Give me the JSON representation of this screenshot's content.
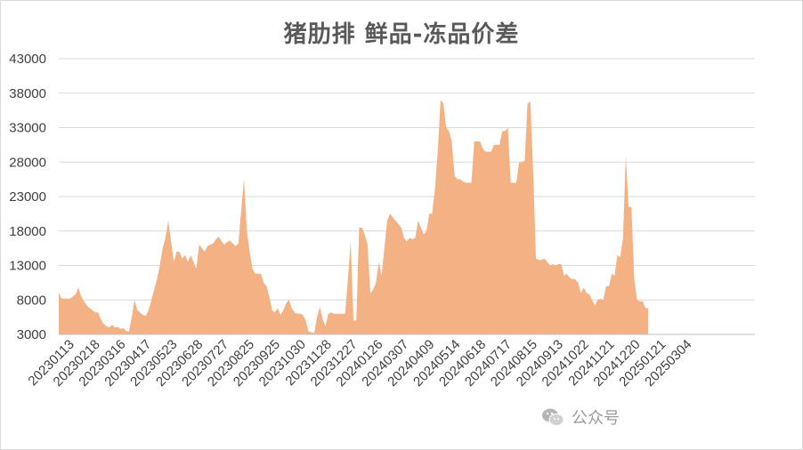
{
  "chart_data": {
    "type": "area",
    "title": "猪肋排  鲜品-冻品价差",
    "xlabel": "",
    "ylabel": "",
    "ylim": [
      3000,
      43000
    ],
    "yticks": [
      3000,
      8000,
      13000,
      18000,
      23000,
      28000,
      33000,
      38000,
      43000
    ],
    "xtick_labels": [
      "20230113",
      "20230218",
      "20230316",
      "20230417",
      "20230523",
      "20230628",
      "20230727",
      "20230825",
      "20230925",
      "20231030",
      "20231128",
      "20231227",
      "20240126",
      "20240307",
      "20240409",
      "20240514",
      "20240618",
      "20240717",
      "20240815",
      "20240913",
      "20241022",
      "20241121",
      "20241220",
      "20250121",
      "20250304"
    ],
    "grid": true,
    "legend": "none",
    "fill_color": "#f4b183",
    "n_points": 248,
    "points": [
      [
        0,
        9000
      ],
      [
        1,
        8200
      ],
      [
        4,
        8200
      ],
      [
        5,
        8500
      ],
      [
        6,
        8800
      ],
      [
        7,
        9800
      ],
      [
        8,
        8500
      ],
      [
        9,
        7800
      ],
      [
        10,
        7200
      ],
      [
        11,
        6800
      ],
      [
        12,
        6500
      ],
      [
        13,
        6200
      ],
      [
        14,
        6200
      ],
      [
        15,
        5200
      ],
      [
        16,
        4500
      ],
      [
        17,
        4200
      ],
      [
        18,
        4000
      ],
      [
        19,
        4400
      ],
      [
        20,
        4000
      ],
      [
        21,
        4100
      ],
      [
        22,
        3800
      ],
      [
        23,
        3900
      ],
      [
        24,
        3500
      ],
      [
        25,
        3400
      ],
      [
        26,
        5500
      ],
      [
        27,
        8000
      ],
      [
        28,
        6500
      ],
      [
        29,
        6200
      ],
      [
        30,
        5800
      ],
      [
        31,
        5700
      ],
      [
        32,
        6500
      ],
      [
        33,
        8000
      ],
      [
        34,
        9500
      ],
      [
        35,
        11000
      ],
      [
        36,
        13000
      ],
      [
        37,
        15500
      ],
      [
        38,
        17000
      ],
      [
        39,
        19500
      ],
      [
        40,
        16500
      ],
      [
        41,
        13500
      ],
      [
        42,
        15000
      ],
      [
        43,
        15000
      ],
      [
        44,
        14000
      ],
      [
        45,
        14500
      ],
      [
        46,
        13500
      ],
      [
        47,
        14500
      ],
      [
        48,
        13500
      ],
      [
        49,
        12500
      ],
      [
        50,
        16000
      ],
      [
        51,
        15500
      ],
      [
        52,
        15000
      ],
      [
        53,
        15800
      ],
      [
        54,
        16000
      ],
      [
        55,
        16200
      ],
      [
        56,
        16800
      ],
      [
        57,
        17200
      ],
      [
        58,
        16500
      ],
      [
        59,
        16000
      ],
      [
        60,
        16400
      ],
      [
        61,
        16600
      ],
      [
        62,
        16200
      ],
      [
        63,
        15800
      ],
      [
        64,
        16200
      ],
      [
        65,
        21000
      ],
      [
        66,
        25500
      ],
      [
        67,
        18000
      ],
      [
        68,
        15000
      ],
      [
        69,
        12500
      ],
      [
        70,
        11800
      ],
      [
        71,
        11800
      ],
      [
        72,
        11800
      ],
      [
        73,
        10500
      ],
      [
        74,
        10000
      ],
      [
        75,
        8500
      ],
      [
        76,
        6500
      ],
      [
        77,
        6200
      ],
      [
        78,
        6800
      ],
      [
        79,
        5800
      ],
      [
        80,
        6500
      ],
      [
        81,
        7500
      ],
      [
        82,
        8000
      ],
      [
        83,
        6800
      ],
      [
        84,
        6200
      ],
      [
        85,
        6000
      ],
      [
        86,
        6000
      ],
      [
        87,
        5800
      ],
      [
        88,
        5000
      ],
      [
        89,
        3400
      ],
      [
        90,
        3300
      ],
      [
        91,
        3200
      ],
      [
        92,
        5500
      ],
      [
        93,
        7000
      ],
      [
        94,
        5200
      ],
      [
        95,
        4200
      ],
      [
        96,
        6000
      ],
      [
        97,
        6200
      ],
      [
        98,
        6000
      ],
      [
        99,
        6000
      ],
      [
        100,
        6000
      ],
      [
        101,
        6000
      ],
      [
        102,
        6000
      ],
      [
        103,
        11000
      ],
      [
        104,
        16500
      ],
      [
        105,
        5000
      ],
      [
        106,
        5000
      ],
      [
        107,
        18500
      ],
      [
        108,
        18500
      ],
      [
        109,
        17500
      ],
      [
        110,
        16000
      ],
      [
        111,
        9000
      ],
      [
        112,
        9500
      ],
      [
        113,
        10500
      ],
      [
        114,
        13500
      ],
      [
        115,
        11500
      ],
      [
        116,
        15500
      ],
      [
        117,
        19500
      ],
      [
        118,
        20500
      ],
      [
        119,
        20000
      ],
      [
        120,
        19500
      ],
      [
        121,
        19000
      ],
      [
        122,
        18500
      ],
      [
        123,
        17000
      ],
      [
        124,
        16500
      ],
      [
        125,
        17000
      ],
      [
        126,
        16800
      ],
      [
        127,
        17000
      ],
      [
        128,
        19500
      ],
      [
        129,
        18500
      ],
      [
        130,
        17500
      ],
      [
        131,
        18000
      ],
      [
        132,
        20500
      ],
      [
        133,
        20500
      ],
      [
        134,
        24000
      ],
      [
        135,
        29500
      ],
      [
        136,
        37000
      ],
      [
        137,
        36500
      ],
      [
        138,
        33000
      ],
      [
        139,
        32500
      ],
      [
        140,
        31000
      ],
      [
        141,
        26000
      ],
      [
        142,
        25500
      ],
      [
        143,
        25500
      ],
      [
        144,
        25200
      ],
      [
        145,
        25000
      ],
      [
        146,
        25000
      ],
      [
        147,
        25000
      ],
      [
        148,
        31000
      ],
      [
        149,
        31000
      ],
      [
        150,
        31000
      ],
      [
        151,
        30000
      ],
      [
        152,
        29500
      ],
      [
        153,
        29500
      ],
      [
        154,
        29500
      ],
      [
        155,
        30500
      ],
      [
        156,
        30500
      ],
      [
        157,
        30500
      ],
      [
        158,
        32500
      ],
      [
        159,
        32500
      ],
      [
        160,
        33000
      ],
      [
        161,
        25000
      ],
      [
        162,
        25000
      ],
      [
        163,
        25000
      ],
      [
        164,
        28000
      ],
      [
        165,
        28000
      ],
      [
        166,
        28200
      ],
      [
        167,
        36500
      ],
      [
        168,
        36800
      ],
      [
        169,
        26500
      ],
      [
        170,
        14000
      ],
      [
        171,
        13800
      ],
      [
        172,
        13800
      ],
      [
        173,
        14000
      ],
      [
        174,
        13500
      ],
      [
        175,
        13000
      ],
      [
        176,
        13200
      ],
      [
        177,
        13000
      ],
      [
        178,
        13200
      ],
      [
        179,
        13200
      ],
      [
        180,
        11500
      ],
      [
        181,
        11800
      ],
      [
        182,
        11200
      ],
      [
        183,
        11000
      ],
      [
        184,
        11000
      ],
      [
        185,
        10500
      ],
      [
        186,
        9000
      ],
      [
        187,
        9800
      ],
      [
        188,
        9000
      ],
      [
        189,
        8800
      ],
      [
        190,
        8000
      ],
      [
        191,
        7200
      ],
      [
        192,
        8000
      ],
      [
        193,
        8200
      ],
      [
        194,
        8000
      ],
      [
        195,
        10000
      ],
      [
        196,
        10000
      ],
      [
        197,
        11800
      ],
      [
        198,
        11500
      ],
      [
        199,
        14500
      ],
      [
        200,
        14200
      ],
      [
        201,
        17000
      ],
      [
        202,
        29000
      ],
      [
        203,
        21500
      ],
      [
        204,
        21500
      ],
      [
        205,
        11000
      ],
      [
        206,
        8000
      ],
      [
        207,
        7800
      ],
      [
        208,
        7800
      ],
      [
        209,
        6800
      ],
      [
        210,
        6800
      ]
    ]
  },
  "watermark": {
    "icon": "wechat-icon",
    "text": "公众号"
  }
}
